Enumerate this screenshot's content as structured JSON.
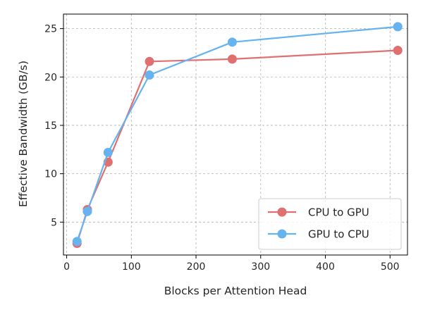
{
  "chart_data": {
    "type": "line",
    "title": "",
    "xlabel": "Blocks per Attention Head",
    "ylabel": "Effective Bandwidth (GB/s)",
    "xlim": [
      -5,
      527
    ],
    "ylim": [
      1.6,
      26.5
    ],
    "xticks": [
      0,
      100,
      200,
      300,
      400,
      500
    ],
    "yticks": [
      5,
      10,
      15,
      20,
      25
    ],
    "grid": true,
    "legend_position": "lower-right",
    "x": [
      16,
      32,
      64,
      128,
      256,
      512
    ],
    "series": [
      {
        "name": "CPU to GPU",
        "color": "#e07070",
        "marker": "circle",
        "values": [
          2.8,
          6.3,
          11.2,
          21.6,
          21.85,
          22.75
        ]
      },
      {
        "name": "GPU to CPU",
        "color": "#66b3f0",
        "marker": "circle",
        "values": [
          3.0,
          6.1,
          12.2,
          20.2,
          23.6,
          25.2
        ]
      }
    ]
  }
}
